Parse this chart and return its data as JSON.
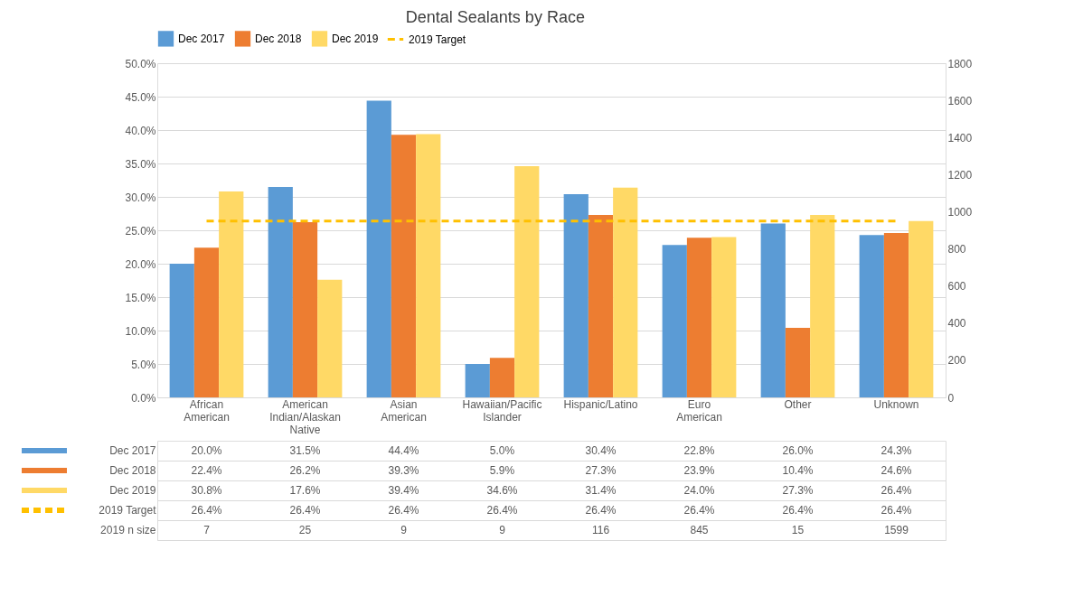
{
  "chart_data": {
    "type": "bar",
    "title": "Dental Sealants by Race",
    "categories": [
      "African American",
      "American Indian/Alaskan Native",
      "Asian American",
      "Hawaiian/Pacific Islander",
      "Hispanic/Latino",
      "Euro American",
      "Other",
      "Unknown"
    ],
    "series": [
      {
        "name": "Dec 2017",
        "color": "#5b9bd5",
        "values": [
          20.0,
          31.5,
          44.4,
          5.0,
          30.4,
          22.8,
          26.0,
          24.3
        ],
        "value_labels": [
          "20.0%",
          "31.5%",
          "44.4%",
          "5.0%",
          "30.4%",
          "22.8%",
          "26.0%",
          "24.3%"
        ]
      },
      {
        "name": "Dec 2018",
        "color": "#ed7d31",
        "values": [
          22.4,
          26.2,
          39.3,
          5.9,
          27.3,
          23.9,
          10.4,
          24.6
        ],
        "value_labels": [
          "22.4%",
          "26.2%",
          "39.3%",
          "5.9%",
          "27.3%",
          "23.9%",
          "10.4%",
          "24.6%"
        ]
      },
      {
        "name": "Dec 2019",
        "color": "#ffd966",
        "values": [
          30.8,
          17.6,
          39.4,
          34.6,
          31.4,
          24.0,
          27.3,
          26.4
        ],
        "value_labels": [
          "30.8%",
          "17.6%",
          "39.4%",
          "34.6%",
          "31.4%",
          "24.0%",
          "27.3%",
          "26.4%"
        ]
      },
      {
        "name": "2019 Target",
        "type": "line",
        "line_style": "dashed",
        "color": "#ffc000",
        "values": [
          26.4,
          26.4,
          26.4,
          26.4,
          26.4,
          26.4,
          26.4,
          26.4
        ],
        "value_labels": [
          "26.4%",
          "26.4%",
          "26.4%",
          "26.4%",
          "26.4%",
          "26.4%",
          "26.4%",
          "26.4%"
        ]
      }
    ],
    "ylim": [
      0,
      50
    ],
    "yticks": [
      {
        "value": 0,
        "label": "0.0%"
      },
      {
        "value": 5,
        "label": "5.0%"
      },
      {
        "value": 10,
        "label": "10.0%"
      },
      {
        "value": 15,
        "label": "15.0%"
      },
      {
        "value": 20,
        "label": "20.0%"
      },
      {
        "value": 25,
        "label": "25.0%"
      },
      {
        "value": 30,
        "label": "30.0%"
      },
      {
        "value": 35,
        "label": "35.0%"
      },
      {
        "value": 40,
        "label": "40.0%"
      },
      {
        "value": 45,
        "label": "45.0%"
      },
      {
        "value": 50,
        "label": "50.0%"
      }
    ],
    "y2lim": [
      0,
      1800
    ],
    "y2ticks": [
      0,
      200,
      400,
      600,
      800,
      1000,
      1200,
      1400,
      1600,
      1800
    ],
    "annotations": [
      "2019 n size",
      "7",
      "25",
      "9",
      "9",
      "116",
      "845",
      "15",
      "1599"
    ],
    "grid": "y",
    "legend": "top"
  }
}
